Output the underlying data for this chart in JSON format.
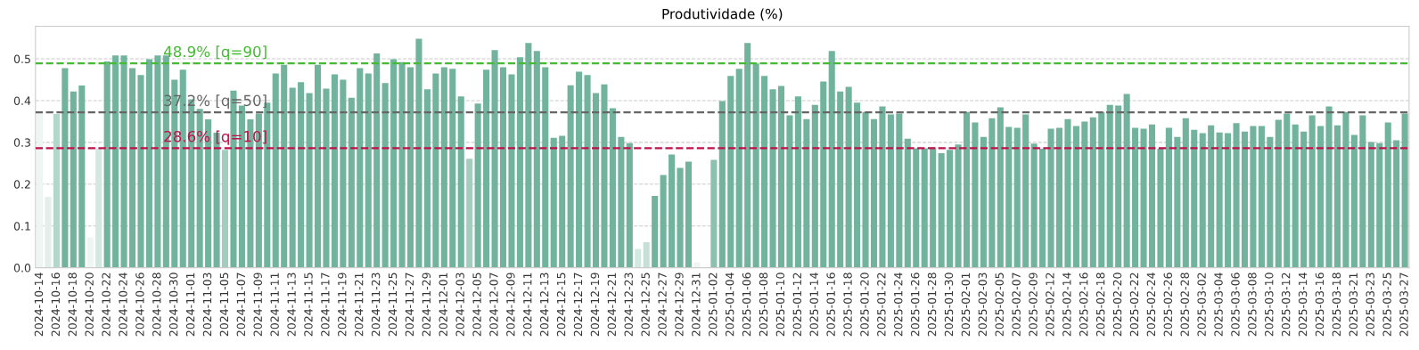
{
  "chart_data": {
    "type": "bar",
    "title": "Produtividade (%)",
    "categories": [
      "2024-10-14",
      null,
      "2024-10-16",
      null,
      "2024-10-18",
      null,
      "2024-10-20",
      null,
      "2024-10-22",
      null,
      "2024-10-24",
      null,
      "2024-10-26",
      null,
      "2024-10-28",
      null,
      "2024-10-30",
      null,
      "2024-11-01",
      null,
      "2024-11-03",
      null,
      "2024-11-05",
      null,
      "2024-11-07",
      null,
      "2024-11-09",
      null,
      "2024-11-11",
      null,
      "2024-11-13",
      null,
      "2024-11-15",
      null,
      "2024-11-17",
      null,
      "2024-11-19",
      null,
      "2024-11-21",
      null,
      "2024-11-23",
      null,
      "2024-11-25",
      null,
      "2024-11-27",
      null,
      "2024-11-29",
      null,
      "2024-12-01",
      null,
      "2024-12-03",
      null,
      "2024-12-05",
      null,
      "2024-12-07",
      null,
      "2024-12-09",
      null,
      "2024-12-11",
      null,
      "2024-12-13",
      null,
      "2024-12-15",
      null,
      "2024-12-17",
      null,
      "2024-12-19",
      null,
      "2024-12-21",
      null,
      "2024-12-23",
      null,
      "2024-12-25",
      null,
      "2024-12-27",
      null,
      "2024-12-29",
      null,
      "2024-12-31",
      null,
      "2025-01-02",
      null,
      "2025-01-04",
      null,
      "2025-01-06",
      null,
      "2025-01-08",
      null,
      "2025-01-10",
      null,
      "2025-01-12",
      null,
      "2025-01-14",
      null,
      "2025-01-16",
      null,
      "2025-01-18",
      null,
      "2025-01-20",
      null,
      "2025-01-22",
      null,
      "2025-01-24",
      null,
      "2025-01-26",
      null,
      "2025-01-28",
      null,
      "2025-01-30",
      null,
      "2025-02-01",
      null,
      "2025-02-03",
      null,
      "2025-02-05",
      null,
      "2025-02-07",
      null,
      "2025-02-09",
      null,
      "2025-02-12",
      null,
      "2025-02-14",
      null,
      "2025-02-16",
      null,
      "2025-02-18",
      null,
      "2025-02-20",
      null,
      "2025-02-22",
      null,
      "2025-02-24",
      null,
      "2025-02-26",
      null,
      "2025-02-28",
      null,
      "2025-03-02",
      null,
      "2025-03-04",
      null,
      "2025-03-06",
      null,
      "2025-03-08",
      null,
      "2025-03-10",
      null,
      "2025-03-12",
      null,
      "2025-03-14",
      null,
      "2025-03-16",
      null,
      "2025-03-18",
      null,
      "2025-03-21",
      null,
      "2025-03-23",
      null,
      "2025-03-25",
      null,
      "2025-03-27"
    ],
    "values": [
      0.37,
      0.17,
      0.368,
      0.478,
      0.422,
      0.436,
      0.073,
      0.285,
      0.494,
      0.508,
      0.508,
      0.478,
      0.461,
      0.499,
      0.508,
      0.508,
      0.45,
      0.474,
      0.403,
      0.38,
      0.355,
      0.323,
      0.282,
      0.424,
      0.388,
      0.355,
      0.369,
      0.395,
      0.465,
      0.486,
      0.431,
      0.444,
      0.418,
      0.486,
      0.429,
      0.463,
      0.45,
      0.407,
      0.478,
      0.465,
      0.513,
      0.442,
      0.499,
      0.492,
      0.48,
      0.548,
      0.427,
      0.465,
      0.48,
      0.476,
      0.41,
      0.261,
      0.393,
      0.474,
      0.521,
      0.48,
      0.463,
      0.504,
      0.538,
      0.519,
      0.48,
      0.311,
      0.316,
      0.437,
      0.469,
      0.461,
      0.418,
      0.439,
      0.382,
      0.313,
      0.298,
      0.045,
      0.061,
      0.172,
      0.222,
      0.271,
      0.239,
      0.254,
      0.013,
      0,
      0.258,
      0.399,
      0.459,
      0.476,
      0.538,
      0.489,
      0.459,
      0.427,
      0.435,
      0.365,
      0.41,
      0.356,
      0.39,
      0.446,
      0.519,
      0.422,
      0.433,
      0.395,
      0.373,
      0.356,
      0.386,
      0.367,
      0.369,
      0.309,
      0.286,
      0.286,
      0.288,
      0.274,
      0.282,
      0.295,
      0.373,
      0.348,
      0.313,
      0.358,
      0.384,
      0.337,
      0.335,
      0.367,
      0.297,
      0.285,
      0.333,
      0.335,
      0.356,
      0.339,
      0.35,
      0.36,
      0.373,
      0.39,
      0.388,
      0.416,
      0.335,
      0.333,
      0.343,
      0.285,
      0.335,
      0.313,
      0.358,
      0.33,
      0.322,
      0.341,
      0.324,
      0.322,
      0.346,
      0.326,
      0.339,
      0.339,
      0.313,
      0.354,
      0.369,
      0.343,
      0.326,
      0.365,
      0.339,
      0.386,
      0.341,
      0.373,
      0.318,
      0.365,
      0.301,
      0.298,
      0.348,
      0.305,
      0.369
    ],
    "colors": [
      "#eef6f3",
      "#e2efea",
      "#b3d7cb",
      "#72b39e",
      "#72b39e",
      "#72b39e",
      "#eef6f3",
      "#d3e8e0",
      "#72b39e",
      "#72b39e",
      "#72b39e",
      "#72b39e",
      "#72b39e",
      "#72b39e",
      "#72b39e",
      "#72b39e",
      "#72b39e",
      "#72b39e",
      "#72b39e",
      "#72b39e",
      "#72b39e",
      "#72b39e",
      "#a3cebf",
      "#72b39e",
      "#72b39e",
      "#72b39e",
      "#72b39e",
      "#72b39e",
      "#72b39e",
      "#72b39e",
      "#72b39e",
      "#72b39e",
      "#72b39e",
      "#72b39e",
      "#72b39e",
      "#72b39e",
      "#72b39e",
      "#72b39e",
      "#72b39e",
      "#72b39e",
      "#72b39e",
      "#72b39e",
      "#72b39e",
      "#72b39e",
      "#72b39e",
      "#72b39e",
      "#72b39e",
      "#72b39e",
      "#72b39e",
      "#72b39e",
      "#72b39e",
      "#a3cebf",
      "#72b39e",
      "#72b39e",
      "#72b39e",
      "#72b39e",
      "#72b39e",
      "#72b39e",
      "#72b39e",
      "#72b39e",
      "#72b39e",
      "#72b39e",
      "#72b39e",
      "#72b39e",
      "#72b39e",
      "#72b39e",
      "#72b39e",
      "#72b39e",
      "#72b39e",
      "#72b39e",
      "#72b39e",
      "#d3e8e0",
      "#c6e0d7",
      "#72b39e",
      "#72b39e",
      "#72b39e",
      "#72b39e",
      "#72b39e",
      "#eef6f3",
      "#72b39e",
      "#8cc1af",
      "#72b39e",
      "#72b39e",
      "#72b39e",
      "#72b39e",
      "#72b39e",
      "#72b39e",
      "#72b39e",
      "#72b39e",
      "#72b39e",
      "#72b39e",
      "#72b39e",
      "#72b39e",
      "#72b39e",
      "#72b39e",
      "#72b39e",
      "#72b39e",
      "#72b39e",
      "#72b39e",
      "#72b39e",
      "#72b39e",
      "#72b39e",
      "#72b39e",
      "#72b39e",
      "#72b39e",
      "#72b39e",
      "#72b39e",
      "#72b39e",
      "#72b39e",
      "#72b39e",
      "#72b39e",
      "#72b39e",
      "#72b39e",
      "#72b39e",
      "#72b39e",
      "#72b39e",
      "#72b39e",
      "#72b39e",
      "#72b39e",
      "#72b39e",
      "#72b39e",
      "#72b39e",
      "#72b39e",
      "#72b39e",
      "#72b39e",
      "#72b39e",
      "#72b39e",
      "#72b39e",
      "#72b39e",
      "#72b39e",
      "#72b39e",
      "#72b39e",
      "#72b39e",
      "#72b39e",
      "#72b39e",
      "#72b39e",
      "#72b39e",
      "#72b39e",
      "#72b39e",
      "#72b39e",
      "#72b39e",
      "#72b39e",
      "#72b39e",
      "#72b39e",
      "#72b39e",
      "#72b39e",
      "#72b39e",
      "#72b39e",
      "#72b39e",
      "#72b39e",
      "#72b39e",
      "#72b39e",
      "#72b39e",
      "#72b39e",
      "#72b39e",
      "#72b39e",
      "#72b39e",
      "#72b39e",
      "#72b39e",
      "#72b39e",
      "#72b39e",
      "#72b39e",
      "#72b39e"
    ],
    "ylim": [
      0,
      0.578
    ],
    "yticks": [
      {
        "value": 0,
        "label": "0.0"
      },
      0.1,
      0.2,
      0.3,
      0.4,
      0.5
    ],
    "grid": "y",
    "ref_lines": [
      {
        "axis": "y",
        "value": 0.489,
        "label": "48.9% [q=90]",
        "color": "#44bb33",
        "line_style": "dashed"
      },
      {
        "axis": "y",
        "value": 0.372,
        "label": "37.2% [q=50]",
        "color": "#666666",
        "line_style": "dashed"
      },
      {
        "axis": "y",
        "value": 0.286,
        "label": "28.6% [q=10]",
        "color": "#c0104a",
        "line_style": "dashed"
      }
    ]
  }
}
